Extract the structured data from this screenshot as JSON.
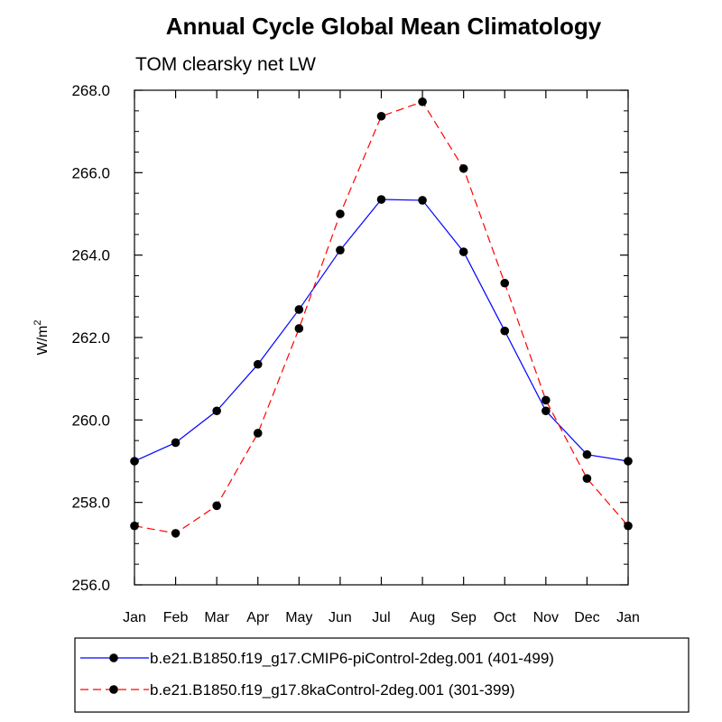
{
  "chart_data": {
    "type": "line",
    "title": "Annual Cycle Global Mean Climatology",
    "subtitle": "TOM clearsky net LW",
    "ylabel": "W/m",
    "ylabel_sup": "2",
    "xlabel": "",
    "categories": [
      "Jan",
      "Feb",
      "Mar",
      "Apr",
      "May",
      "Jun",
      "Jul",
      "Aug",
      "Sep",
      "Oct",
      "Nov",
      "Dec",
      "Jan"
    ],
    "ylim": [
      256.0,
      268.0
    ],
    "yticks": [
      "256.0",
      "258.0",
      "260.0",
      "262.0",
      "264.0",
      "266.0",
      "268.0"
    ],
    "grid": false,
    "legend_position": "bottom",
    "series": [
      {
        "name": "b.e21.B1850.f19_g17.CMIP6-piControl-2deg.001 (401-499)",
        "color": "#0000ff",
        "line_style": "solid",
        "values": [
          259.0,
          259.45,
          260.22,
          261.35,
          262.68,
          264.12,
          265.35,
          265.33,
          264.08,
          262.16,
          260.22,
          259.16,
          259.0
        ]
      },
      {
        "name": "b.e21.B1850.f19_g17.8kaControl-2deg.001 (301-399)",
        "color": "#ff0000",
        "line_style": "dashed",
        "values": [
          257.43,
          257.25,
          257.92,
          259.68,
          262.22,
          265.0,
          267.37,
          267.72,
          266.1,
          263.32,
          260.48,
          258.58,
          257.43
        ]
      }
    ]
  }
}
